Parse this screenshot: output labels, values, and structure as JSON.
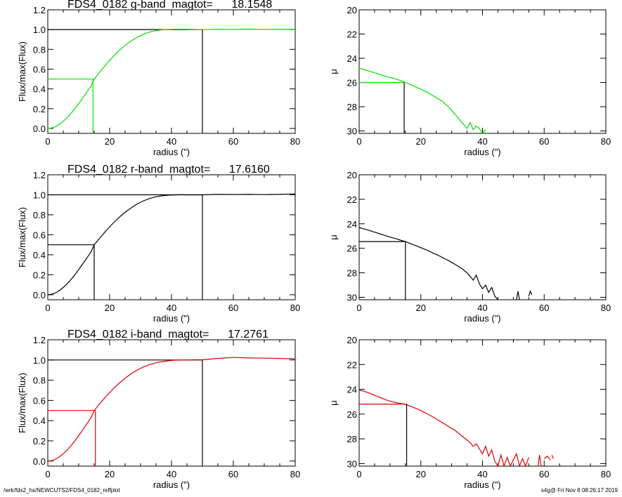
{
  "figure": {
    "footer_left": "/wrk/fds2_hs/NEWCUTS2/FDS4_0182_reffplot",
    "footer_right": "s4g@  Fri Nov  8 08:26:17 2019"
  },
  "chart_data": [
    {
      "type": "line",
      "title": "FDS4_0182 g-band  magtot=      18.1548",
      "xlabel": "radius (\")",
      "ylabel": "Flux/max(Flux)",
      "xlim": [
        0,
        80
      ],
      "ylim": [
        -0.05,
        1.2
      ],
      "xticks": [
        0,
        20,
        40,
        60,
        80
      ],
      "yticks": [
        "0.0",
        "0.2",
        "0.4",
        "0.6",
        "0.8",
        "1.0",
        "1.2"
      ],
      "color": "#00e000",
      "series": [
        {
          "x": [
            0,
            1,
            2,
            3,
            4,
            5,
            6,
            7,
            8,
            9,
            10,
            11,
            12,
            13,
            14,
            15,
            17,
            19,
            21,
            23,
            25,
            27,
            29,
            31,
            33,
            35,
            37,
            39,
            41,
            43,
            45,
            47,
            50,
            55,
            60,
            65,
            70,
            75,
            80
          ],
          "y": [
            0,
            0.003,
            0.012,
            0.027,
            0.048,
            0.073,
            0.101,
            0.134,
            0.171,
            0.21,
            0.252,
            0.295,
            0.339,
            0.384,
            0.43,
            0.5,
            0.578,
            0.653,
            0.722,
            0.785,
            0.84,
            0.886,
            0.924,
            0.954,
            0.976,
            0.99,
            0.998,
            1.002,
            1.004,
            1.004,
            1.003,
            1.002,
            1.0,
            1.004,
            1.002,
            1.005,
            1.001,
            1.004,
            1.002
          ]
        }
      ],
      "half_light": {
        "radius": 14.6,
        "value": 0.5
      },
      "total": {
        "radius": 50,
        "value": 1.0
      }
    },
    {
      "type": "line",
      "xlabel": "radius (\")",
      "ylabel": "μ",
      "xlim": [
        0,
        80
      ],
      "ylim": [
        30.2,
        20
      ],
      "xticks": [
        0,
        20,
        40,
        60,
        80
      ],
      "yticks": [
        20,
        22,
        24,
        26,
        28,
        30
      ],
      "color": "#00e000",
      "series": [
        {
          "x": [
            0,
            1,
            2,
            3,
            4,
            5,
            6,
            7,
            8,
            9,
            10,
            11,
            12,
            13,
            14,
            15,
            16,
            17,
            18,
            19,
            20,
            21,
            22,
            23,
            24,
            25,
            26,
            27,
            28,
            29,
            30,
            31,
            32,
            33,
            34,
            35,
            36,
            37,
            38,
            39,
            40,
            41
          ],
          "y": [
            24.8,
            24.9,
            24.97,
            25.05,
            25.12,
            25.2,
            25.28,
            25.37,
            25.45,
            25.52,
            25.58,
            25.64,
            25.72,
            25.8,
            25.9,
            26.0,
            26.1,
            26.2,
            26.32,
            26.45,
            26.55,
            26.68,
            26.8,
            26.95,
            27.1,
            27.25,
            27.4,
            27.55,
            27.8,
            28.0,
            28.3,
            28.6,
            28.9,
            29.2,
            29.5,
            29.8,
            29.3,
            29.9,
            29.6,
            29.8,
            30.2,
            29.9
          ]
        }
      ],
      "half_light": {
        "radius": 14.6,
        "value": 26.0
      }
    },
    {
      "type": "line",
      "title": "FDS4_0182 r-band  magtot=      17.6160",
      "xlabel": "radius (\")",
      "ylabel": "Flux/max(Flux)",
      "xlim": [
        0,
        80
      ],
      "ylim": [
        -0.05,
        1.2
      ],
      "xticks": [
        0,
        20,
        40,
        60,
        80
      ],
      "yticks": [
        "0.0",
        "0.2",
        "0.4",
        "0.6",
        "0.8",
        "1.0",
        "1.2"
      ],
      "color": "#000000",
      "series": [
        {
          "x": [
            0,
            1,
            2,
            3,
            4,
            5,
            6,
            7,
            8,
            9,
            10,
            11,
            12,
            13,
            14,
            15,
            17,
            19,
            21,
            23,
            25,
            27,
            29,
            31,
            33,
            35,
            37,
            39,
            41,
            43,
            45,
            47,
            50,
            55,
            60,
            65,
            70,
            75,
            80
          ],
          "y": [
            0,
            0.003,
            0.012,
            0.027,
            0.048,
            0.073,
            0.101,
            0.134,
            0.171,
            0.21,
            0.252,
            0.295,
            0.339,
            0.384,
            0.43,
            0.5,
            0.574,
            0.646,
            0.712,
            0.772,
            0.825,
            0.87,
            0.909,
            0.94,
            0.963,
            0.98,
            0.99,
            0.996,
            0.999,
            1.001,
            1.0,
            1.0,
            1.0,
            1.004,
            1.003,
            1.004,
            1.002,
            1.004,
            1.008
          ]
        }
      ],
      "half_light": {
        "radius": 15.0,
        "value": 0.5
      },
      "total": {
        "radius": 50,
        "value": 1.0
      }
    },
    {
      "type": "line",
      "xlabel": "radius (\")",
      "ylabel": "μ",
      "xlim": [
        0,
        80
      ],
      "ylim": [
        30.2,
        20
      ],
      "xticks": [
        0,
        20,
        40,
        60,
        80
      ],
      "yticks": [
        20,
        22,
        24,
        26,
        28,
        30
      ],
      "color": "#000000",
      "series": [
        {
          "x": [
            0,
            1,
            2,
            3,
            4,
            5,
            6,
            7,
            8,
            9,
            10,
            11,
            12,
            13,
            14,
            15,
            16,
            17,
            18,
            19,
            20,
            21,
            22,
            23,
            24,
            25,
            26,
            27,
            28,
            29,
            30,
            31,
            32,
            33,
            34,
            35,
            36,
            37,
            38,
            39,
            40,
            41,
            42,
            43,
            44,
            45
          ],
          "y": [
            24.3,
            24.38,
            24.45,
            24.52,
            24.6,
            24.68,
            24.76,
            24.84,
            24.92,
            25.0,
            25.08,
            25.15,
            25.22,
            25.3,
            25.38,
            25.45,
            25.55,
            25.65,
            25.75,
            25.85,
            25.95,
            26.05,
            26.15,
            26.27,
            26.4,
            26.5,
            26.62,
            26.75,
            26.88,
            27.0,
            27.15,
            27.3,
            27.45,
            27.6,
            27.8,
            28.0,
            28.3,
            28.6,
            28.2,
            28.9,
            29.3,
            29.0,
            29.6,
            29.2,
            29.9,
            30.2
          ]
        },
        {
          "x": [
            51,
            51.5,
            52
          ],
          "y": [
            30.2,
            29.5,
            30.2
          ]
        },
        {
          "x": [
            55,
            55.5,
            56
          ],
          "y": [
            29.9,
            29.5,
            29.8
          ]
        }
      ],
      "half_light": {
        "radius": 15.0,
        "value": 25.45
      }
    },
    {
      "type": "line",
      "title": "FDS4_0182 i-band  magtot=      17.2761",
      "xlabel": "radius (\")",
      "ylabel": "Flux/max(Flux)",
      "xlim": [
        0,
        80
      ],
      "ylim": [
        -0.05,
        1.2
      ],
      "xticks": [
        0,
        20,
        40,
        60,
        80
      ],
      "yticks": [
        "0.0",
        "0.2",
        "0.4",
        "0.6",
        "0.8",
        "1.0",
        "1.2"
      ],
      "color": "#e00000",
      "series": [
        {
          "x": [
            0,
            1,
            2,
            3,
            4,
            5,
            6,
            7,
            8,
            9,
            10,
            11,
            12,
            13,
            14,
            15,
            17,
            19,
            21,
            23,
            25,
            27,
            29,
            31,
            33,
            35,
            37,
            39,
            41,
            43,
            45,
            47,
            50,
            55,
            60,
            65,
            70,
            75,
            80
          ],
          "y": [
            0,
            0.003,
            0.012,
            0.027,
            0.048,
            0.073,
            0.101,
            0.134,
            0.171,
            0.21,
            0.252,
            0.295,
            0.339,
            0.384,
            0.43,
            0.5,
            0.575,
            0.645,
            0.71,
            0.768,
            0.82,
            0.864,
            0.902,
            0.932,
            0.955,
            0.972,
            0.984,
            0.992,
            0.997,
            1.0,
            1.001,
            1.002,
            1.002,
            1.015,
            1.025,
            1.02,
            1.018,
            1.015,
            1.012
          ]
        }
      ],
      "half_light": {
        "radius": 15.4,
        "value": 0.5
      },
      "total": {
        "radius": 50,
        "value": 1.0
      }
    },
    {
      "type": "line",
      "xlabel": "radius (\")",
      "ylabel": "μ",
      "xlim": [
        0,
        80
      ],
      "ylim": [
        30.2,
        20
      ],
      "xticks": [
        0,
        20,
        40,
        60,
        80
      ],
      "yticks": [
        20,
        22,
        24,
        26,
        28,
        30
      ],
      "color": "#e00000",
      "series": [
        {
          "x": [
            0,
            1,
            2,
            3,
            4,
            5,
            6,
            7,
            8,
            9,
            10,
            11,
            12,
            13,
            14,
            15,
            16,
            17,
            18,
            19,
            20,
            21,
            22,
            23,
            24,
            25,
            26,
            27,
            28,
            29,
            30,
            31,
            32,
            33,
            34,
            35,
            36,
            37,
            38,
            39,
            40,
            41,
            42,
            43,
            44,
            45,
            46,
            47,
            48,
            49,
            50,
            51,
            52,
            53,
            54,
            55
          ],
          "y": [
            24.05,
            24.12,
            24.2,
            24.28,
            24.38,
            24.48,
            24.58,
            24.68,
            24.78,
            24.88,
            24.95,
            25.02,
            25.08,
            25.12,
            25.17,
            25.22,
            25.3,
            25.4,
            25.5,
            25.6,
            25.72,
            25.85,
            25.98,
            26.1,
            26.25,
            26.4,
            26.55,
            26.7,
            26.85,
            27.0,
            27.15,
            27.3,
            27.5,
            27.7,
            27.9,
            28.1,
            28.3,
            28.6,
            28.4,
            28.8,
            29.2,
            28.6,
            29.4,
            28.9,
            29.8,
            30.2,
            29.3,
            30.2,
            29.5,
            30.2,
            29.7,
            29.2,
            30.2,
            29.6,
            30.2,
            29.5
          ]
        },
        {
          "x": [
            58,
            58.5,
            59
          ],
          "y": [
            30.2,
            29.3,
            30.2
          ]
        },
        {
          "x": [
            60,
            61,
            62
          ],
          "y": [
            29.6,
            29.4,
            29.7
          ]
        },
        {
          "x": [
            62.5,
            63
          ],
          "y": [
            29.3,
            29.6
          ]
        }
      ],
      "half_light": {
        "radius": 15.4,
        "value": 25.2
      }
    }
  ]
}
